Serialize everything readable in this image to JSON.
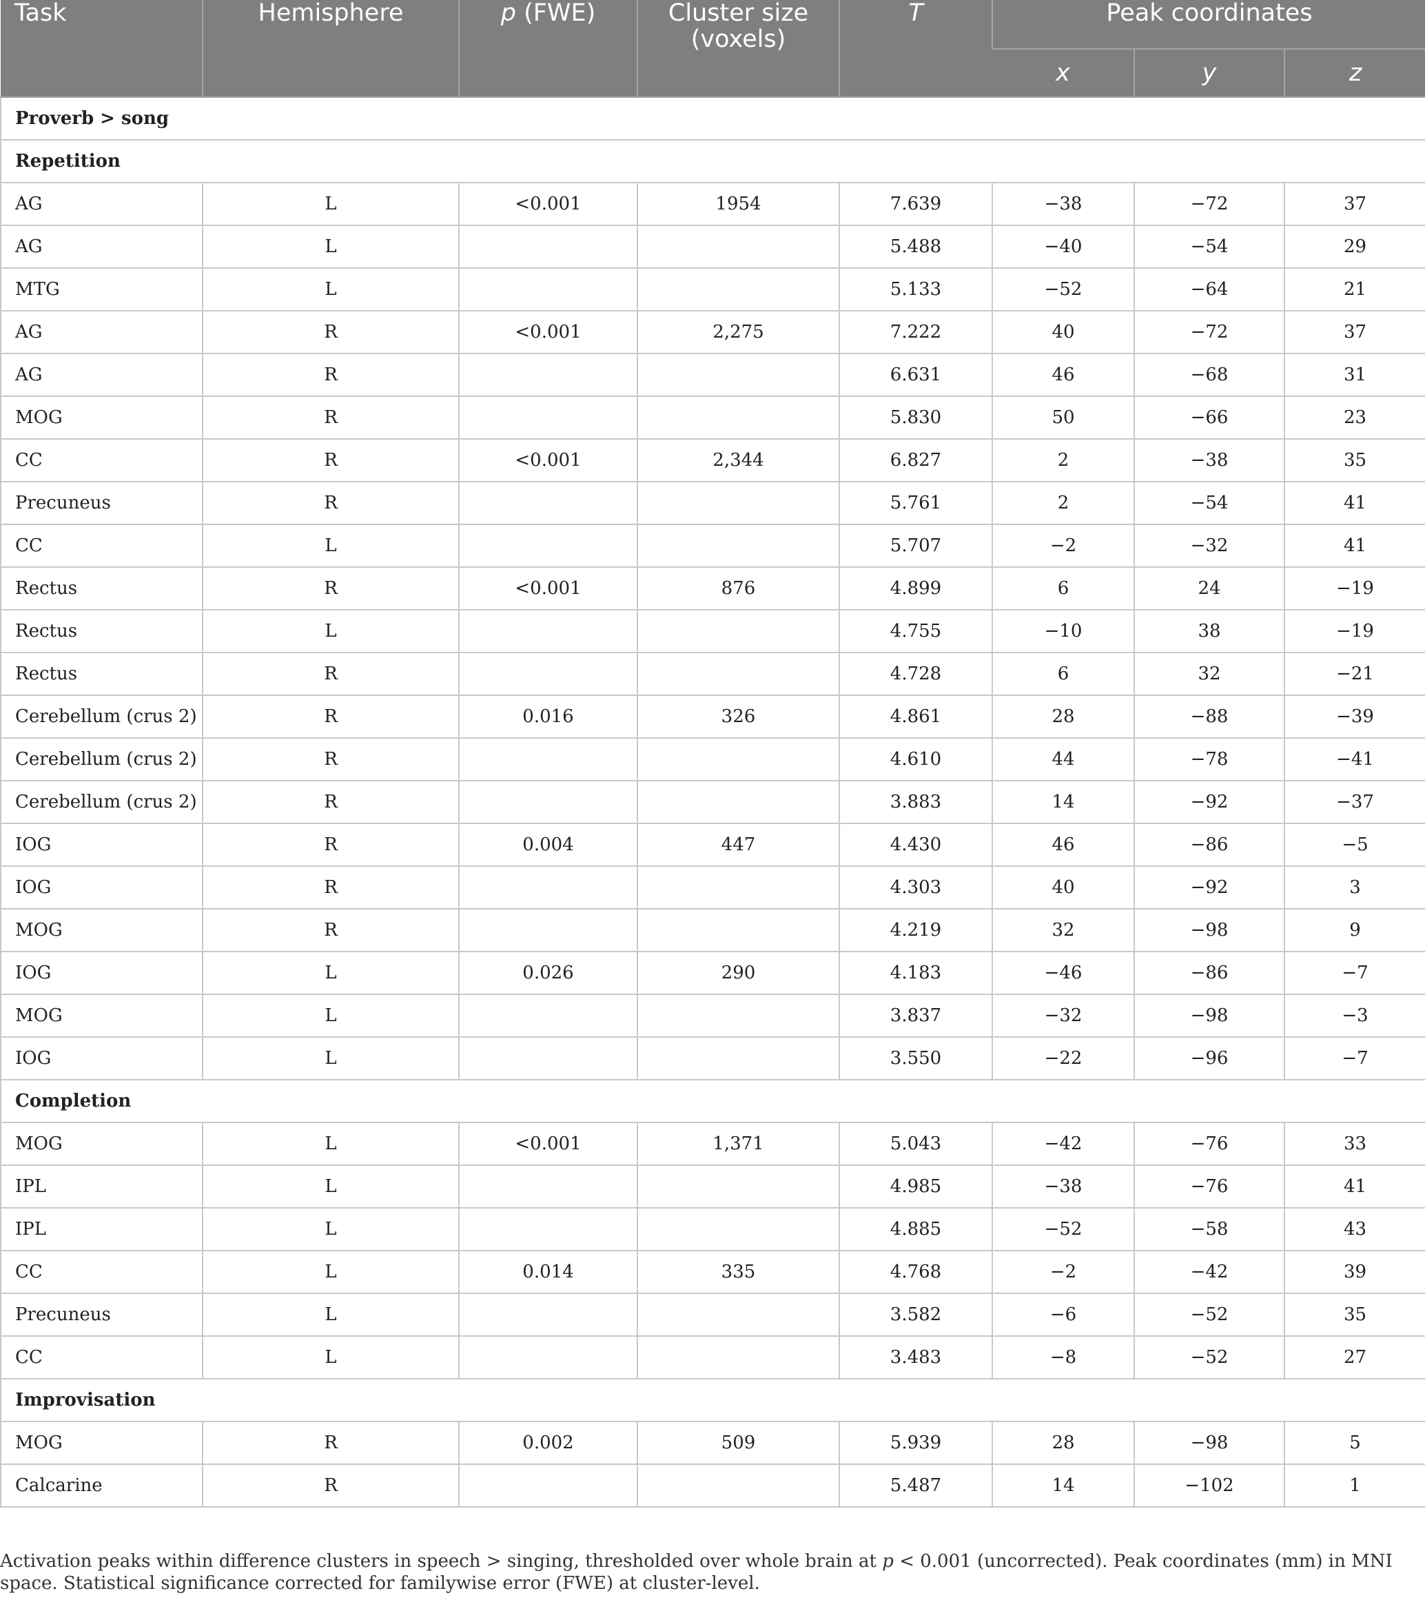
{
  "table": {
    "headers": {
      "task": "Task",
      "hemisphere": "Hemisphere",
      "p_prefix": "p",
      "p_suffix": " (FWE)",
      "cluster_line1": "Cluster size",
      "cluster_line2": "(voxels)",
      "t": "T",
      "peak": "Peak coordinates",
      "x": "x",
      "y": "y",
      "z": "z"
    },
    "contrast": "Proverb > song",
    "groups": [
      {
        "name": "Repetition",
        "rows": [
          [
            "AG",
            "L",
            "<0.001",
            "1954",
            "7.639",
            "−38",
            "−72",
            "37"
          ],
          [
            "AG",
            "L",
            "",
            "",
            "5.488",
            "−40",
            "−54",
            "29"
          ],
          [
            "MTG",
            "L",
            "",
            "",
            "5.133",
            "−52",
            "−64",
            "21"
          ],
          [
            "AG",
            "R",
            "<0.001",
            "2,275",
            "7.222",
            "40",
            "−72",
            "37"
          ],
          [
            "AG",
            "R",
            "",
            "",
            "6.631",
            "46",
            "−68",
            "31"
          ],
          [
            "MOG",
            "R",
            "",
            "",
            "5.830",
            "50",
            "−66",
            "23"
          ],
          [
            "CC",
            "R",
            "<0.001",
            "2,344",
            "6.827",
            "2",
            "−38",
            "35"
          ],
          [
            "Precuneus",
            "R",
            "",
            "",
            "5.761",
            "2",
            "−54",
            "41"
          ],
          [
            "CC",
            "L",
            "",
            "",
            "5.707",
            "−2",
            "−32",
            "41"
          ],
          [
            "Rectus",
            "R",
            "<0.001",
            "876",
            "4.899",
            "6",
            "24",
            "−19"
          ],
          [
            "Rectus",
            "L",
            "",
            "",
            "4.755",
            "−10",
            "38",
            "−19"
          ],
          [
            "Rectus",
            "R",
            "",
            "",
            "4.728",
            "6",
            "32",
            "−21"
          ],
          [
            "Cerebellum (crus 2)",
            "R",
            "0.016",
            "326",
            "4.861",
            "28",
            "−88",
            "−39"
          ],
          [
            "Cerebellum (crus 2)",
            "R",
            "",
            "",
            "4.610",
            "44",
            "−78",
            "−41"
          ],
          [
            "Cerebellum (crus 2)",
            "R",
            "",
            "",
            "3.883",
            "14",
            "−92",
            "−37"
          ],
          [
            "IOG",
            "R",
            "0.004",
            "447",
            "4.430",
            "46",
            "−86",
            "−5"
          ],
          [
            "IOG",
            "R",
            "",
            "",
            "4.303",
            "40",
            "−92",
            "3"
          ],
          [
            "MOG",
            "R",
            "",
            "",
            "4.219",
            "32",
            "−98",
            "9"
          ],
          [
            "IOG",
            "L",
            "0.026",
            "290",
            "4.183",
            "−46",
            "−86",
            "−7"
          ],
          [
            "MOG",
            "L",
            "",
            "",
            "3.837",
            "−32",
            "−98",
            "−3"
          ],
          [
            "IOG",
            "L",
            "",
            "",
            "3.550",
            "−22",
            "−96",
            "−7"
          ]
        ]
      },
      {
        "name": "Completion",
        "rows": [
          [
            "MOG",
            "L",
            "<0.001",
            "1,371",
            "5.043",
            "−42",
            "−76",
            "33"
          ],
          [
            "IPL",
            "L",
            "",
            "",
            "4.985",
            "−38",
            "−76",
            "41"
          ],
          [
            "IPL",
            "L",
            "",
            "",
            "4.885",
            "−52",
            "−58",
            "43"
          ],
          [
            "CC",
            "L",
            "0.014",
            "335",
            "4.768",
            "−2",
            "−42",
            "39"
          ],
          [
            "Precuneus",
            "L",
            "",
            "",
            "3.582",
            "−6",
            "−52",
            "35"
          ],
          [
            "CC",
            "L",
            "",
            "",
            "3.483",
            "−8",
            "−52",
            "27"
          ]
        ]
      },
      {
        "name": "Improvisation",
        "rows": [
          [
            "MOG",
            "R",
            "0.002",
            "509",
            "5.939",
            "28",
            "−98",
            "5"
          ],
          [
            "Calcarine",
            "R",
            "",
            "",
            "5.487",
            "14",
            "−102",
            "1"
          ]
        ]
      }
    ]
  },
  "footnote": {
    "part1": "Activation peaks within difference clusters in speech > singing, thresholded over whole brain at ",
    "p_italic": "p",
    "part2": " < 0.001 (uncorrected). Peak coordinates (mm) in MNI space. Statistical significance corrected for familywise error (FWE) at cluster-level."
  }
}
